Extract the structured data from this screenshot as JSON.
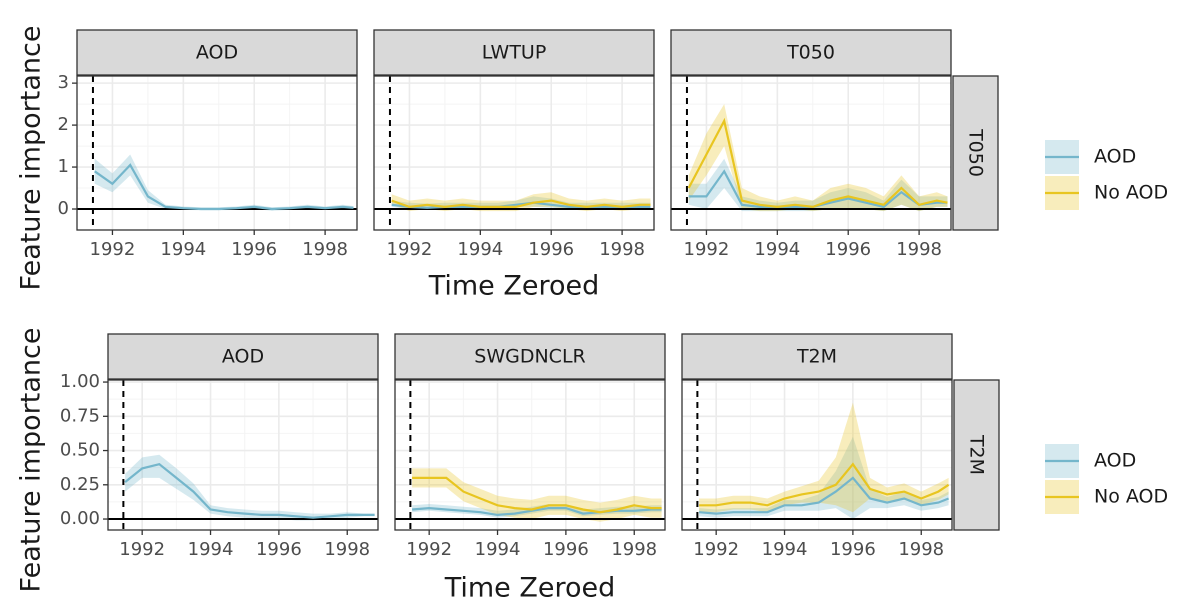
{
  "chart_data": [
    {
      "type": "line",
      "x_label": "Time Zeroed",
      "y_label": "Feature importance",
      "row_label": "T050",
      "xlim": [
        1991.0,
        1998.9
      ],
      "xticks": [
        1992,
        1994,
        1996,
        1998
      ],
      "ylim": [
        -0.5,
        3.17
      ],
      "yticks": [
        0,
        1,
        2,
        3
      ],
      "grid": true,
      "vline": 1991.45,
      "hline": 0,
      "x": [
        1991.5,
        1992,
        1992.5,
        1993,
        1993.5,
        1994,
        1994.5,
        1995,
        1995.5,
        1996,
        1996.5,
        1997,
        1997.5,
        1998,
        1998.5,
        1998.8
      ],
      "panels": [
        {
          "title": "AOD",
          "series": [
            {
              "name": "AOD",
              "color": "#74b6cb",
              "values": [
                0.9,
                0.6,
                1.05,
                0.3,
                0.05,
                0.02,
                0,
                0,
                0.02,
                0.05,
                0,
                0.02,
                0.05,
                0.02,
                0.05,
                0.03
              ],
              "lower": [
                0.6,
                0.4,
                0.8,
                0.15,
                0,
                -0.02,
                -0.03,
                -0.03,
                -0.02,
                0,
                -0.04,
                -0.02,
                0,
                -0.02,
                0,
                -0.01
              ],
              "upper": [
                1.2,
                0.85,
                1.3,
                0.45,
                0.1,
                0.06,
                0.04,
                0.04,
                0.06,
                0.1,
                0.04,
                0.06,
                0.1,
                0.06,
                0.1,
                0.07
              ]
            }
          ]
        },
        {
          "title": "LWTUP",
          "series": [
            {
              "name": "AOD",
              "color": "#74b6cb",
              "values": [
                0.1,
                0.05,
                0.03,
                0.05,
                0.05,
                0.05,
                0.05,
                0.1,
                0.15,
                0.1,
                0.05,
                0.05,
                0.05,
                0.05,
                0.05,
                0.05
              ],
              "lower": [
                0.05,
                0,
                -0.02,
                0,
                0,
                0,
                0,
                0.05,
                0.05,
                0.03,
                0,
                0,
                0,
                0,
                0,
                0
              ],
              "upper": [
                0.2,
                0.15,
                0.13,
                0.15,
                0.15,
                0.15,
                0.15,
                0.2,
                0.3,
                0.25,
                0.15,
                0.15,
                0.15,
                0.15,
                0.15,
                0.15
              ]
            },
            {
              "name": "No AOD",
              "color": "#e8c520",
              "values": [
                0.2,
                0.05,
                0.1,
                0.05,
                0.1,
                0.05,
                0.05,
                0.05,
                0.15,
                0.2,
                0.1,
                0.05,
                0.1,
                0.05,
                0.1,
                0.1
              ],
              "lower": [
                0.1,
                -0.05,
                0,
                -0.05,
                0,
                -0.05,
                -0.05,
                -0.05,
                0.05,
                0.05,
                0,
                -0.05,
                0,
                -0.05,
                0,
                0
              ],
              "upper": [
                0.35,
                0.2,
                0.25,
                0.2,
                0.25,
                0.2,
                0.2,
                0.2,
                0.35,
                0.4,
                0.25,
                0.2,
                0.25,
                0.2,
                0.25,
                0.25
              ]
            }
          ]
        },
        {
          "title": "T050",
          "series": [
            {
              "name": "AOD",
              "color": "#74b6cb",
              "values": [
                0.3,
                0.3,
                0.9,
                0.1,
                0.05,
                0.05,
                0.05,
                0.05,
                0.15,
                0.25,
                0.15,
                0.05,
                0.4,
                0.1,
                0.15,
                0.15
              ],
              "lower": [
                0.1,
                0,
                0.5,
                -0.05,
                -0.05,
                -0.05,
                -0.05,
                -0.05,
                0,
                0,
                0,
                -0.05,
                0.1,
                -0.05,
                0.05,
                0.05
              ],
              "upper": [
                0.6,
                0.6,
                1.2,
                0.3,
                0.2,
                0.15,
                0.2,
                0.2,
                0.4,
                0.5,
                0.4,
                0.2,
                0.7,
                0.3,
                0.3,
                0.3
              ]
            },
            {
              "name": "No AOD",
              "color": "#e8c520",
              "values": [
                0.5,
                1.3,
                2.1,
                0.2,
                0.1,
                0.05,
                0.1,
                0.05,
                0.2,
                0.3,
                0.2,
                0.1,
                0.5,
                0.1,
                0.2,
                0.15
              ],
              "lower": [
                0.2,
                0.8,
                1.5,
                0,
                -0.05,
                -0.05,
                0,
                -0.05,
                0,
                0,
                0,
                -0.05,
                0.1,
                -0.05,
                0.05,
                0.05
              ],
              "upper": [
                0.8,
                1.8,
                2.5,
                0.5,
                0.3,
                0.2,
                0.3,
                0.2,
                0.5,
                0.6,
                0.5,
                0.3,
                0.8,
                0.3,
                0.4,
                0.3
              ]
            }
          ]
        }
      ]
    },
    {
      "type": "line",
      "x_label": "Time Zeroed",
      "y_label": "Feature importance",
      "row_label": "T2M",
      "xlim": [
        1991.0,
        1998.9
      ],
      "xticks": [
        1992,
        1994,
        1996,
        1998
      ],
      "ylim": [
        -0.08,
        1.015
      ],
      "yticks": [
        {
          "value": 0,
          "label": "0.00"
        },
        {
          "value": 0.25,
          "label": "0.25"
        },
        {
          "value": 0.5,
          "label": "0.50"
        },
        {
          "value": 0.75,
          "label": "0.75"
        },
        {
          "value": 1,
          "label": "1.00"
        }
      ],
      "grid": true,
      "vline": 1991.45,
      "hline": 0,
      "x": [
        1991.5,
        1992,
        1992.5,
        1993,
        1993.5,
        1994,
        1994.5,
        1995,
        1995.5,
        1996,
        1996.5,
        1997,
        1997.5,
        1998,
        1998.5,
        1998.8
      ],
      "panels": [
        {
          "title": "AOD",
          "series": [
            {
              "name": "AOD",
              "color": "#74b6cb",
              "values": [
                0.27,
                0.37,
                0.4,
                0.3,
                0.2,
                0.07,
                0.05,
                0.04,
                0.03,
                0.03,
                0.02,
                0.01,
                0.02,
                0.03,
                0.03,
                0.03
              ],
              "lower": [
                0.2,
                0.3,
                0.3,
                0.22,
                0.14,
                0.04,
                0.02,
                0.01,
                0,
                0,
                -0.01,
                -0.01,
                0,
                0.01,
                0.02,
                0.02
              ],
              "upper": [
                0.33,
                0.45,
                0.47,
                0.37,
                0.26,
                0.1,
                0.08,
                0.07,
                0.06,
                0.06,
                0.05,
                0.04,
                0.04,
                0.05,
                0.04,
                0.04
              ]
            }
          ]
        },
        {
          "title": "SWGDNCLR",
          "series": [
            {
              "name": "AOD",
              "color": "#74b6cb",
              "values": [
                0.07,
                0.08,
                0.07,
                0.06,
                0.05,
                0.03,
                0.04,
                0.06,
                0.08,
                0.08,
                0.04,
                0.05,
                0.06,
                0.06,
                0.07,
                0.07
              ],
              "lower": [
                0.05,
                0.06,
                0.05,
                0.04,
                0.03,
                0.01,
                0.02,
                0.04,
                0.06,
                0.06,
                0.02,
                0.03,
                0.04,
                0.04,
                0.05,
                0.05
              ],
              "upper": [
                0.1,
                0.11,
                0.1,
                0.09,
                0.08,
                0.06,
                0.07,
                0.09,
                0.11,
                0.11,
                0.07,
                0.08,
                0.09,
                0.09,
                0.1,
                0.1
              ]
            },
            {
              "name": "No AOD",
              "color": "#e8c520",
              "values": [
                0.3,
                0.3,
                0.3,
                0.2,
                0.15,
                0.1,
                0.08,
                0.07,
                0.1,
                0.1,
                0.07,
                0.05,
                0.07,
                0.1,
                0.08,
                0.08
              ],
              "lower": [
                0.23,
                0.23,
                0.23,
                0.13,
                0.08,
                0.03,
                0.01,
                0,
                0.03,
                0.03,
                0,
                -0.02,
                0,
                0.03,
                0.01,
                0.01
              ],
              "upper": [
                0.37,
                0.37,
                0.37,
                0.27,
                0.22,
                0.17,
                0.15,
                0.14,
                0.17,
                0.17,
                0.14,
                0.12,
                0.14,
                0.17,
                0.15,
                0.15
              ]
            }
          ]
        },
        {
          "title": "T2M",
          "series": [
            {
              "name": "AOD",
              "color": "#74b6cb",
              "values": [
                0.05,
                0.04,
                0.05,
                0.05,
                0.05,
                0.1,
                0.1,
                0.12,
                0.2,
                0.3,
                0.15,
                0.12,
                0.15,
                0.1,
                0.12,
                0.15
              ],
              "lower": [
                0.02,
                0.01,
                0.02,
                0.02,
                0.02,
                0.06,
                0.06,
                0.06,
                0.08,
                0,
                0.08,
                0.08,
                0.1,
                0.06,
                0.08,
                0.1
              ],
              "upper": [
                0.08,
                0.07,
                0.08,
                0.08,
                0.08,
                0.14,
                0.14,
                0.18,
                0.35,
                0.6,
                0.22,
                0.16,
                0.2,
                0.14,
                0.16,
                0.2
              ]
            },
            {
              "name": "No AOD",
              "color": "#e8c520",
              "values": [
                0.1,
                0.1,
                0.12,
                0.12,
                0.1,
                0.15,
                0.18,
                0.2,
                0.25,
                0.4,
                0.22,
                0.18,
                0.2,
                0.15,
                0.2,
                0.25
              ],
              "lower": [
                0.05,
                0.05,
                0.07,
                0.07,
                0.05,
                0.1,
                0.12,
                0.12,
                0.1,
                0.05,
                0.15,
                0.13,
                0.14,
                0.1,
                0.14,
                0.18
              ],
              "upper": [
                0.15,
                0.15,
                0.17,
                0.17,
                0.15,
                0.2,
                0.24,
                0.28,
                0.45,
                0.85,
                0.3,
                0.23,
                0.26,
                0.2,
                0.26,
                0.3
              ]
            }
          ]
        }
      ]
    }
  ]
}
